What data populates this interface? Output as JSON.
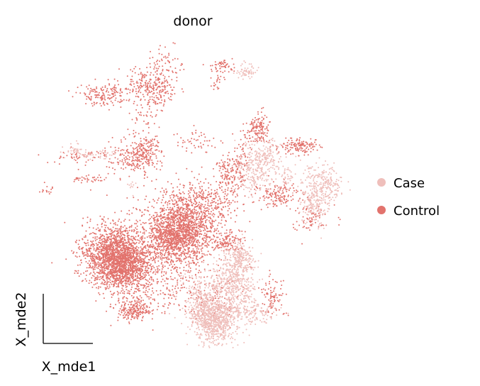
{
  "chart_data": {
    "type": "scatter",
    "title": "donor",
    "xlabel": "X_mde1",
    "ylabel": "X_mde2",
    "grid": false,
    "ticks": false,
    "legend": {
      "placement": "right",
      "entries": [
        {
          "name": "Case",
          "color": "#efbfbb"
        },
        {
          "name": "Control",
          "color": "#e2736d"
        }
      ]
    },
    "series": [
      {
        "name": "Case",
        "color": "#efbfbb"
      },
      {
        "name": "Control",
        "color": "#e2736d"
      }
    ]
  }
}
